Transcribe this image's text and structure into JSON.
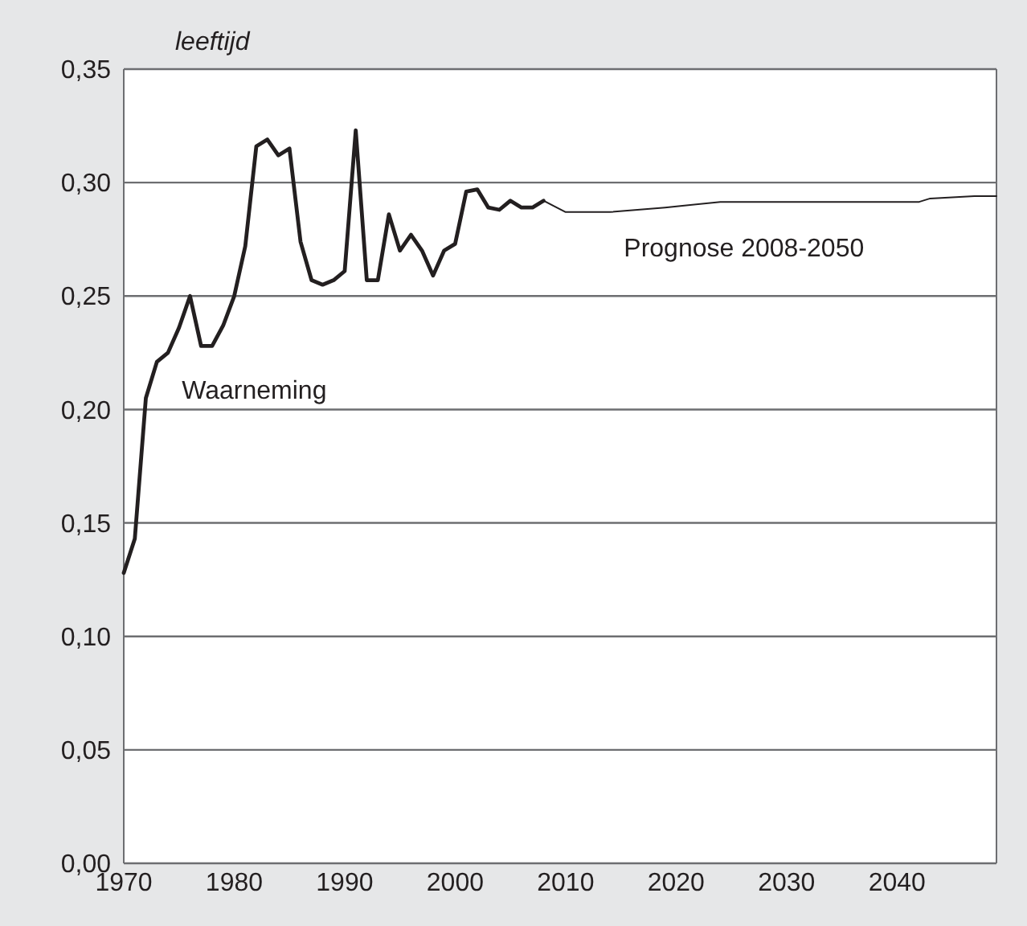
{
  "chart_data": {
    "type": "line",
    "ylabel": "leeftijd",
    "xlim": [
      1970,
      2049
    ],
    "xticks": [
      1970,
      1980,
      1990,
      2000,
      2010,
      2020,
      2030,
      2040
    ],
    "ylim": [
      0,
      0.35
    ],
    "yticks": [
      {
        "value": 0,
        "label": "0,00"
      },
      {
        "value": 0.05,
        "label": "0,05"
      },
      {
        "value": 0.1,
        "label": "0,10"
      },
      {
        "value": 0.15,
        "label": "0,15"
      },
      {
        "value": 0.2,
        "label": "0,20"
      },
      {
        "value": 0.25,
        "label": "0,25"
      },
      {
        "value": 0.3,
        "label": "0,30"
      },
      {
        "value": 0.35,
        "label": "0,35"
      }
    ],
    "grid": "y",
    "marker": "none",
    "line_style": "solid",
    "series": [
      {
        "name": "Waarneming",
        "color": "#231f20",
        "x": [
          1970,
          1971,
          1972,
          1973,
          1974,
          1975,
          1976,
          1977,
          1978,
          1979,
          1980,
          1981,
          1982,
          1983,
          1984,
          1985,
          1986,
          1987,
          1988,
          1989,
          1990,
          1991,
          1992,
          1993,
          1994,
          1995,
          1996,
          1997,
          1998,
          1999,
          2000,
          2001,
          2002,
          2003,
          2004,
          2005,
          2006,
          2007,
          2008
        ],
        "values": [
          0.128,
          0.143,
          0.205,
          0.221,
          0.225,
          0.236,
          0.25,
          0.228,
          0.228,
          0.237,
          0.25,
          0.272,
          0.316,
          0.319,
          0.312,
          0.315,
          0.274,
          0.257,
          0.255,
          0.257,
          0.261,
          0.323,
          0.257,
          0.257,
          0.286,
          0.27,
          0.277,
          0.27,
          0.259,
          0.27,
          0.273,
          0.296,
          0.297,
          0.289,
          0.288,
          0.292,
          0.289,
          0.289,
          0.292
        ]
      },
      {
        "name": "Prognose 2008-2050",
        "color": "#231f20",
        "x": [
          2008,
          2010,
          2014,
          2019,
          2024,
          2042,
          2043,
          2047,
          2049
        ],
        "values": [
          0.292,
          0.287,
          0.287,
          0.289,
          0.2915,
          0.2915,
          0.293,
          0.294,
          0.294
        ]
      }
    ]
  }
}
